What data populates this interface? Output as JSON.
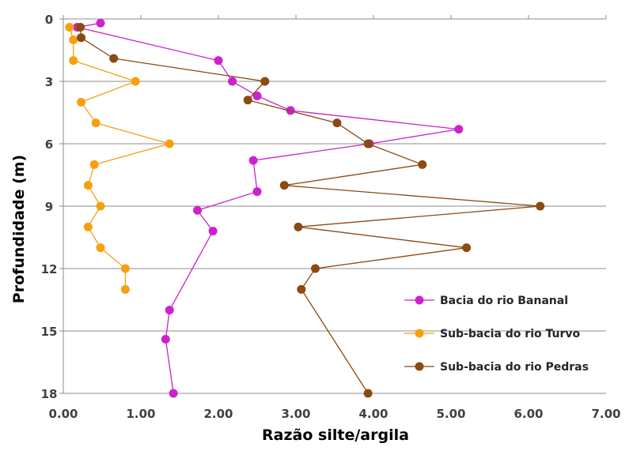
{
  "chart_data": {
    "type": "scatter",
    "xlabel": "Razão silte/argila",
    "ylabel": "Profundidade (m)",
    "xlim": [
      0,
      7
    ],
    "ylim": [
      0,
      18
    ],
    "y_inverted": true,
    "x_ticks": [
      "0.00",
      "1.00",
      "2.00",
      "3.00",
      "4.00",
      "5.00",
      "6.00",
      "7.00"
    ],
    "y_ticks": [
      "0",
      "3",
      "6",
      "9",
      "12",
      "15",
      "18"
    ],
    "grid": "horizontal",
    "legend_position": "bottom-right",
    "series": [
      {
        "name": "Bacia do rio Bananal",
        "color": "#cc22cc",
        "points": [
          [
            0.48,
            0.2
          ],
          [
            0.18,
            0.4
          ],
          [
            2.0,
            2.0
          ],
          [
            2.18,
            3.0
          ],
          [
            2.5,
            3.7
          ],
          [
            2.93,
            4.4
          ],
          [
            5.1,
            5.3
          ],
          [
            3.95,
            6.0
          ],
          [
            2.45,
            6.8
          ],
          [
            2.5,
            8.3
          ],
          [
            1.73,
            9.2
          ],
          [
            1.93,
            10.2
          ],
          [
            1.37,
            14.0
          ],
          [
            1.32,
            15.4
          ],
          [
            1.42,
            18.0
          ]
        ]
      },
      {
        "name": "Sub-bacia do rio Turvo",
        "color": "#f5a00f",
        "points": [
          [
            0.08,
            0.4
          ],
          [
            0.13,
            1.0
          ],
          [
            0.13,
            2.0
          ],
          [
            0.93,
            3.0
          ],
          [
            0.23,
            4.0
          ],
          [
            0.42,
            5.0
          ],
          [
            1.37,
            6.0
          ],
          [
            0.4,
            7.0
          ],
          [
            0.32,
            8.0
          ],
          [
            0.48,
            9.0
          ],
          [
            0.32,
            10.0
          ],
          [
            0.48,
            11.0
          ],
          [
            0.8,
            12.0
          ],
          [
            0.8,
            13.0
          ]
        ]
      },
      {
        "name": "Sub-bacia do rio Pedras",
        "color": "#8b4a12",
        "points": [
          [
            0.22,
            0.4
          ],
          [
            0.23,
            0.9
          ],
          [
            0.65,
            1.9
          ],
          [
            2.6,
            3.0
          ],
          [
            2.38,
            3.9
          ],
          [
            3.53,
            5.0
          ],
          [
            3.93,
            6.0
          ],
          [
            4.63,
            7.0
          ],
          [
            2.85,
            8.0
          ],
          [
            6.15,
            9.0
          ],
          [
            3.03,
            10.0
          ],
          [
            5.2,
            11.0
          ],
          [
            3.25,
            12.0
          ],
          [
            3.07,
            13.0
          ],
          [
            3.93,
            18.0
          ]
        ]
      }
    ]
  }
}
